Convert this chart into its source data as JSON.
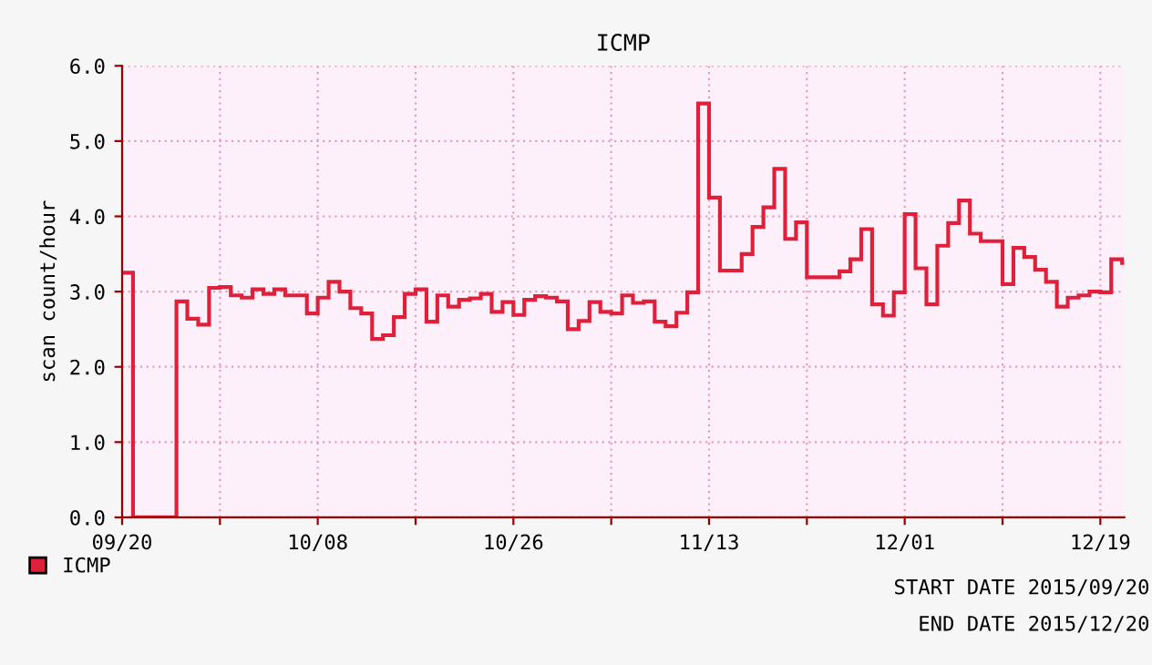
{
  "chart_data": {
    "type": "step",
    "title": "ICMP",
    "ylabel": "scan count/hour",
    "x": [
      "2015-09-20",
      "2015-09-21",
      "2015-09-22",
      "2015-09-23",
      "2015-09-24",
      "2015-09-25",
      "2015-09-26",
      "2015-09-27",
      "2015-09-28",
      "2015-09-29",
      "2015-09-30",
      "2015-10-01",
      "2015-10-02",
      "2015-10-03",
      "2015-10-04",
      "2015-10-05",
      "2015-10-06",
      "2015-10-07",
      "2015-10-08",
      "2015-10-09",
      "2015-10-10",
      "2015-10-11",
      "2015-10-12",
      "2015-10-13",
      "2015-10-14",
      "2015-10-15",
      "2015-10-16",
      "2015-10-17",
      "2015-10-18",
      "2015-10-19",
      "2015-10-20",
      "2015-10-21",
      "2015-10-22",
      "2015-10-23",
      "2015-10-24",
      "2015-10-25",
      "2015-10-26",
      "2015-10-27",
      "2015-10-28",
      "2015-10-29",
      "2015-10-30",
      "2015-10-31",
      "2015-11-01",
      "2015-11-02",
      "2015-11-03",
      "2015-11-04",
      "2015-11-05",
      "2015-11-06",
      "2015-11-07",
      "2015-11-08",
      "2015-11-09",
      "2015-11-10",
      "2015-11-11",
      "2015-11-12",
      "2015-11-13",
      "2015-11-14",
      "2015-11-15",
      "2015-11-16",
      "2015-11-17",
      "2015-11-18",
      "2015-11-19",
      "2015-11-20",
      "2015-11-21",
      "2015-11-22",
      "2015-11-23",
      "2015-11-24",
      "2015-11-25",
      "2015-11-26",
      "2015-11-27",
      "2015-11-28",
      "2015-11-29",
      "2015-11-30",
      "2015-12-01",
      "2015-12-02",
      "2015-12-03",
      "2015-12-04",
      "2015-12-05",
      "2015-12-06",
      "2015-12-07",
      "2015-12-08",
      "2015-12-09",
      "2015-12-10",
      "2015-12-11",
      "2015-12-12",
      "2015-12-13",
      "2015-12-14",
      "2015-12-15",
      "2015-12-16",
      "2015-12-17",
      "2015-12-18",
      "2015-12-19",
      "2015-12-20",
      "2015-12-21"
    ],
    "series": [
      {
        "name": "ICMP",
        "color": "#e0203a",
        "values": [
          3.25,
          0,
          0,
          0,
          0,
          2.87,
          2.64,
          2.56,
          3.05,
          3.06,
          2.95,
          2.92,
          3.03,
          2.97,
          3.03,
          2.95,
          2.95,
          2.71,
          2.92,
          3.13,
          3.0,
          2.78,
          2.71,
          2.37,
          2.42,
          2.66,
          2.97,
          3.03,
          2.6,
          2.95,
          2.8,
          2.89,
          2.91,
          2.97,
          2.73,
          2.86,
          2.69,
          2.89,
          2.94,
          2.92,
          2.87,
          2.5,
          2.61,
          2.86,
          2.73,
          2.71,
          2.95,
          2.85,
          2.87,
          2.6,
          2.54,
          2.72,
          2.99,
          5.5,
          4.25,
          3.28,
          3.28,
          3.5,
          3.86,
          4.12,
          4.63,
          3.7,
          3.92,
          3.19,
          3.19,
          3.19,
          3.27,
          3.43,
          3.83,
          2.83,
          2.68,
          2.99,
          4.03,
          3.31,
          2.83,
          3.61,
          3.91,
          4.21,
          3.77,
          3.67,
          3.67,
          3.1,
          3.58,
          3.46,
          3.29,
          3.13,
          2.8,
          2.92,
          2.95,
          3.0,
          2.99,
          3.43,
          3.38
        ]
      }
    ],
    "xlim": [
      "2015-09-20",
      "2015-12-21T05:00"
    ],
    "xticks": [
      {
        "value": "2015-09-20",
        "label": "09/20"
      },
      {
        "value": "2015-09-29",
        "label": null
      },
      {
        "value": "2015-10-08",
        "label": "10/08"
      },
      {
        "value": "2015-10-17",
        "label": null
      },
      {
        "value": "2015-10-26",
        "label": "10/26"
      },
      {
        "value": "2015-11-04",
        "label": null
      },
      {
        "value": "2015-11-13",
        "label": "11/13"
      },
      {
        "value": "2015-11-22",
        "label": null
      },
      {
        "value": "2015-12-01",
        "label": "12/01"
      },
      {
        "value": "2015-12-10",
        "label": null
      },
      {
        "value": "2015-12-19",
        "label": "12/19"
      }
    ],
    "ylim": [
      0,
      6
    ],
    "yticks": [
      {
        "value": 0,
        "label": "0.0"
      },
      {
        "value": 1,
        "label": "1.0"
      },
      {
        "value": 2,
        "label": "2.0"
      },
      {
        "value": 3,
        "label": "3.0"
      },
      {
        "value": 4,
        "label": "4.0"
      },
      {
        "value": 5,
        "label": "5.0"
      },
      {
        "value": 6,
        "label": "6.0"
      }
    ],
    "grid": true,
    "legend": "bottom left",
    "annotations": [
      "START DATE 2015/09/20",
      "END DATE 2015/12/20"
    ]
  }
}
